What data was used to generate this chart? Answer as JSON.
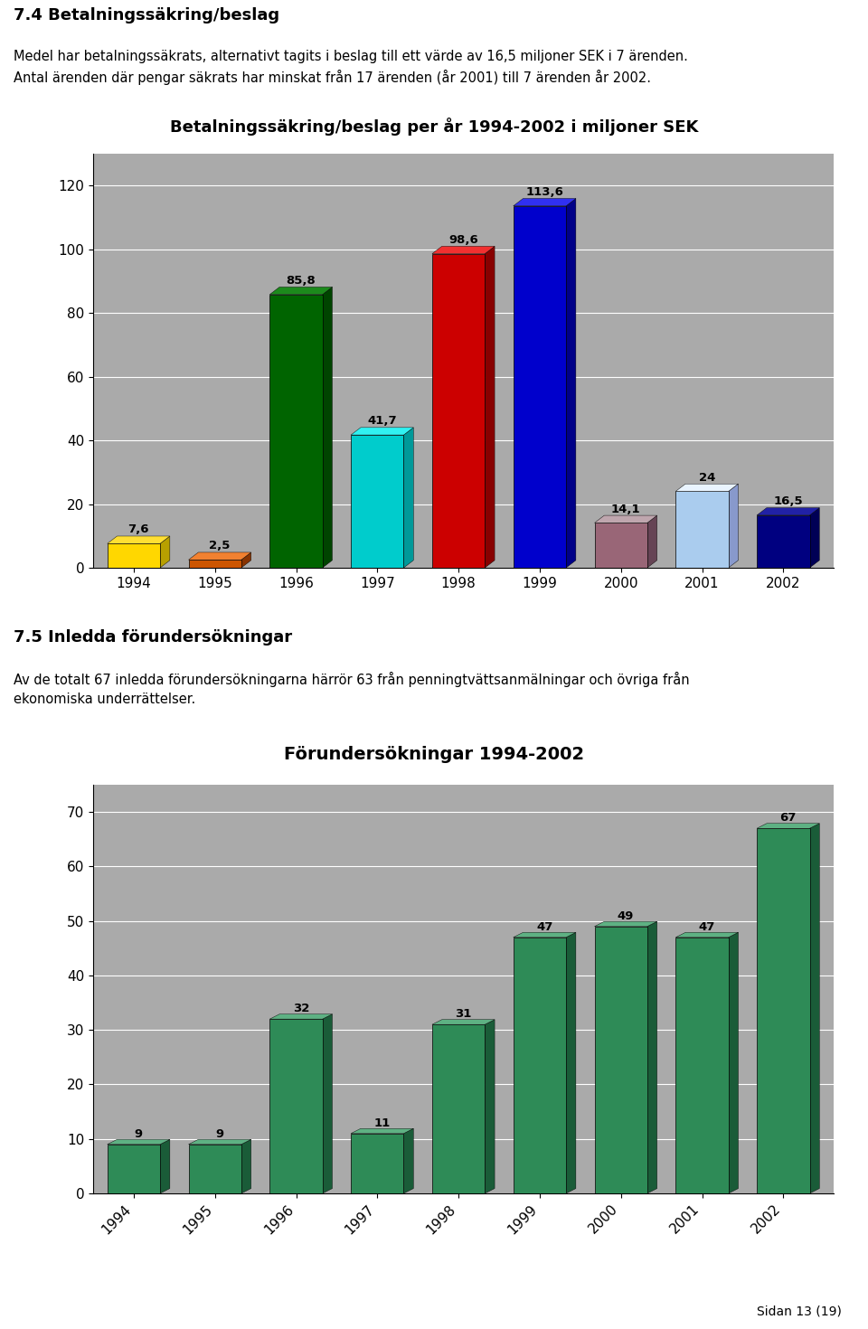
{
  "page_title1": "7.4 Betalningssäkring/beslag",
  "page_text1": "Medel har betalningssäkrats, alternativt tagits i beslag till ett värde av 16,5 miljoner SEK i 7 ärenden.\nAntal ärenden där pengar säkrats har minskat från 17 ärenden (år 2001) till 7 ärenden år 2002.",
  "chart1_title": "Betalningssäkring/beslag per år 1994-2002 i miljoner SEK",
  "chart1_years": [
    "1994",
    "1995",
    "1996",
    "1997",
    "1998",
    "1999",
    "2000",
    "2001",
    "2002"
  ],
  "chart1_values": [
    7.6,
    2.5,
    85.8,
    41.7,
    98.6,
    113.6,
    14.1,
    24.0,
    16.5
  ],
  "chart1_labels": [
    "7,6",
    "2,5",
    "85,8",
    "41,7",
    "98,6",
    "113,6",
    "14,1",
    "24",
    "16,5"
  ],
  "chart1_colors": [
    "#FFD700",
    "#CC5500",
    "#006400",
    "#00CCCC",
    "#CC0000",
    "#0000CC",
    "#996677",
    "#AACCEE",
    "#000080"
  ],
  "chart1_shadow_colors": [
    "#B8A000",
    "#883300",
    "#004400",
    "#009999",
    "#880000",
    "#000088",
    "#664455",
    "#8899CC",
    "#000055"
  ],
  "chart1_ylim": [
    0,
    130
  ],
  "chart1_yticks": [
    0,
    20,
    40,
    60,
    80,
    100,
    120
  ],
  "chart1_bg": "#9DBFBA",
  "chart1_plot_bg": "#AAAAAA",
  "page_title2": "7.5 Inledda förundersökningar",
  "page_text2": "Av de totalt 67 inledda förundersökningarna härrör 63 från penningtvättsanmälningar och övriga från\nekonomiska underrättelser.",
  "chart2_title": "Förundersökningar 1994-2002",
  "chart2_years": [
    "1994",
    "1995",
    "1996",
    "1997",
    "1998",
    "1999",
    "2000",
    "2001",
    "2002"
  ],
  "chart2_values": [
    9,
    9,
    32,
    11,
    31,
    47,
    49,
    47,
    67
  ],
  "chart2_labels": [
    "9",
    "9",
    "32",
    "11",
    "31",
    "47",
    "49",
    "47",
    "67"
  ],
  "chart2_color": "#2E8B57",
  "chart2_shadow_color": "#1a5c38",
  "chart2_ylim": [
    0,
    75
  ],
  "chart2_yticks": [
    0,
    10,
    20,
    30,
    40,
    50,
    60,
    70
  ],
  "chart2_bg": "#9DBFBA",
  "chart2_plot_bg": "#AAAAAA",
  "footer": "Sidan 13 (19)"
}
